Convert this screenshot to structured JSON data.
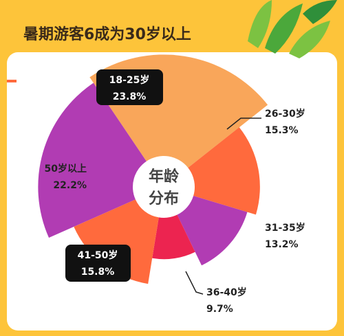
{
  "chart_data": {
    "type": "rose",
    "title": "暑期游客6成为30岁以上",
    "center_label": [
      "年龄",
      "分布"
    ],
    "categories": [
      "18-25岁",
      "26-30岁",
      "31-35岁",
      "36-40岁",
      "41-50岁",
      "50岁以上"
    ],
    "values": [
      23.8,
      15.3,
      13.2,
      9.7,
      15.8,
      22.2
    ],
    "value_labels": [
      "23.8%",
      "15.3%",
      "13.2%",
      "9.7%",
      "15.8%",
      "22.2%"
    ],
    "colors": [
      "#F9A65A",
      "#FF6A3D",
      "#B13CB3",
      "#EC2450",
      "#FF6A3D",
      "#B13CB3"
    ]
  }
}
